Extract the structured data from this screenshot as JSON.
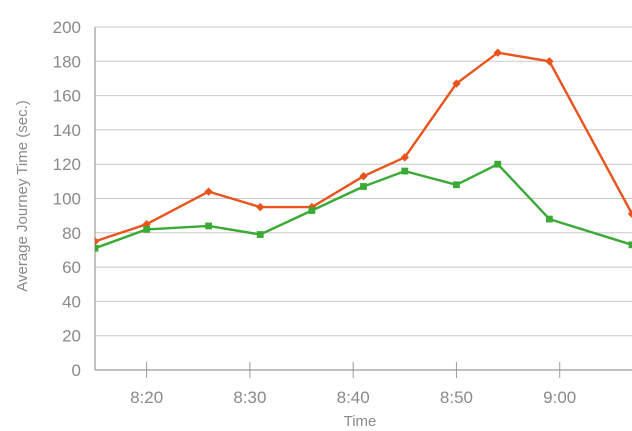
{
  "chart_data": {
    "type": "line",
    "xlabel": "Time",
    "ylabel": "Average Journey Time (sec.)",
    "ylim": [
      0,
      200
    ],
    "yticks": [
      "0",
      "20",
      "40",
      "60",
      "80",
      "100",
      "120",
      "140",
      "160",
      "180",
      "200"
    ],
    "xlim": [
      "8:15",
      "9:07"
    ],
    "xtick_labels": [
      "8:20",
      "8:30",
      "8:40",
      "8:50",
      "9:00"
    ],
    "xtick_values_minutes": [
      500,
      510,
      520,
      530,
      540
    ],
    "grid": "horizontal",
    "legend": "none",
    "series": [
      {
        "color": "#e8541c",
        "marker": "diamond",
        "x_time": [
          "8:15",
          "8:20",
          "8:26",
          "8:31",
          "8:36",
          "8:41",
          "8:45",
          "8:50",
          "8:54",
          "8:59",
          "9:07"
        ],
        "x_minutes": [
          495,
          500,
          506,
          511,
          516,
          521,
          525,
          530,
          534,
          539,
          547
        ],
        "values": [
          75,
          85,
          104,
          95,
          95,
          113,
          124,
          167,
          185,
          180,
          91
        ]
      },
      {
        "color": "#3aaa35",
        "marker": "square",
        "x_time": [
          "8:15",
          "8:20",
          "8:26",
          "8:31",
          "8:36",
          "8:41",
          "8:45",
          "8:50",
          "8:54",
          "8:59",
          "9:07"
        ],
        "x_minutes": [
          495,
          500,
          506,
          511,
          516,
          521,
          525,
          530,
          534,
          539,
          547
        ],
        "values": [
          71,
          82,
          84,
          79,
          93,
          107,
          116,
          108,
          120,
          88,
          73
        ]
      }
    ]
  }
}
